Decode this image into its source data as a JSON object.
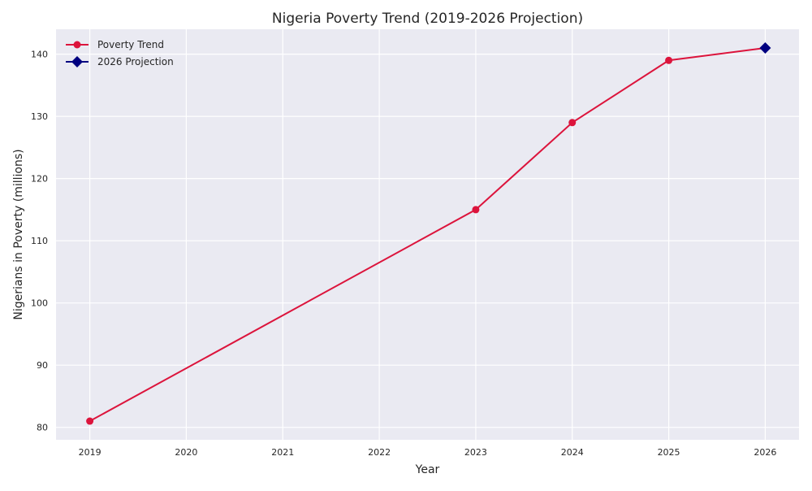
{
  "chart_data": {
    "type": "line",
    "title": "Nigeria Poverty Trend (2019-2026 Projection)",
    "xlabel": "Year",
    "ylabel": "Nigerians in Poverty (millions)",
    "xlim": [
      2018.65,
      2026.35
    ],
    "ylim": [
      78,
      144
    ],
    "xticks": [
      2019,
      2020,
      2021,
      2022,
      2023,
      2024,
      2025,
      2026
    ],
    "yticks": [
      80,
      90,
      100,
      110,
      120,
      130,
      140
    ],
    "grid": true,
    "legend_position": "top-left",
    "series": [
      {
        "name": "Poverty Trend",
        "color": "#dc143c",
        "marker": "circle",
        "x": [
          2019,
          2023,
          2024,
          2025,
          2026
        ],
        "y": [
          81,
          115,
          129,
          139,
          141
        ]
      },
      {
        "name": "2026 Projection",
        "color": "#000080",
        "marker": "diamond",
        "x": [
          2026
        ],
        "y": [
          141
        ]
      }
    ]
  }
}
